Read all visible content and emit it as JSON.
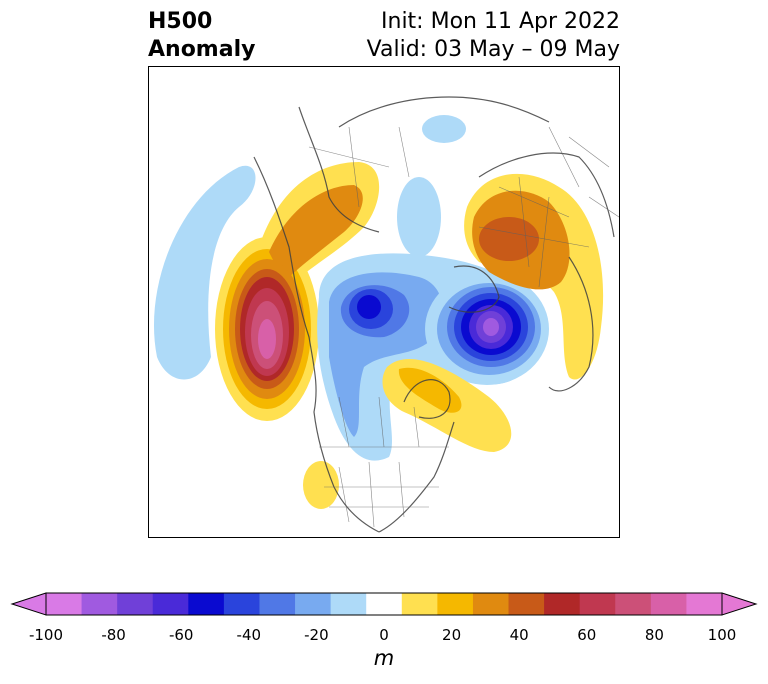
{
  "title": {
    "left_line1": "H500",
    "left_line2": "Anomaly",
    "init": "Init: Mon 11 Apr 2022",
    "valid": "Valid: 03 May – 09 May"
  },
  "colorbar": {
    "units": "m",
    "ticks": [
      "-100",
      "-80",
      "-60",
      "-40",
      "-20",
      "0",
      "20",
      "40",
      "60",
      "80",
      "100"
    ],
    "colors": [
      "#d97ae6",
      "#a05ae0",
      "#7040d8",
      "#4a2ad8",
      "#0a0ad0",
      "#2a44dc",
      "#5078e6",
      "#78aaf0",
      "#aedaf8",
      "#ffffff",
      "#ffe050",
      "#f5b800",
      "#e08a10",
      "#c85a18",
      "#b02828",
      "#c03850",
      "#cc5078",
      "#d860a8",
      "#e478d4"
    ],
    "under_color": "#d97ae6",
    "over_color": "#e478d4"
  },
  "map": {
    "projection": "north-polar-stereographic",
    "variable": "500 hPa geopotential height anomaly"
  }
}
